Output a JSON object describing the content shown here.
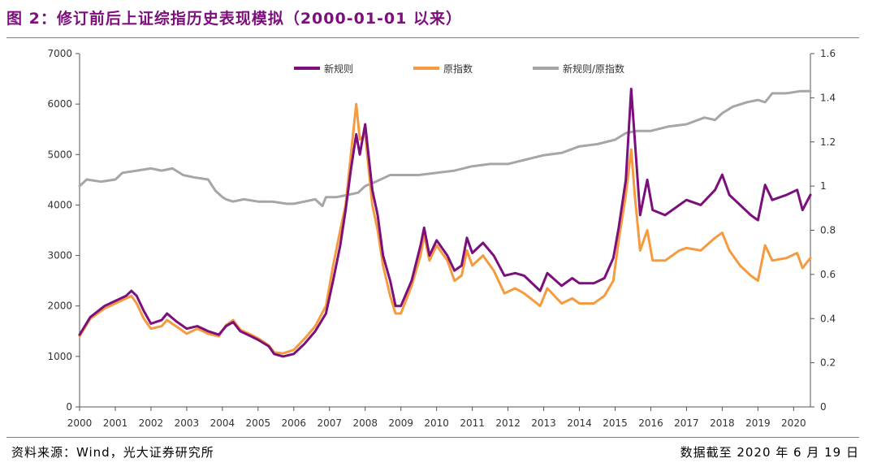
{
  "title": "图 2：修订前后上证综指历史表现模拟（2000-01-01 以来）",
  "footer": {
    "source": "资料来源：Wind，光大证券研究所",
    "date": "数据截至 2020 年 6 月 19 日"
  },
  "colors": {
    "new_rule": "#7b0f7b",
    "original": "#f59a3f",
    "ratio": "#a6a6a6",
    "title": "#7c0f7c"
  },
  "chart_data": {
    "type": "line",
    "title": "修订前后上证综指历史表现模拟（2000-01-01 以来）",
    "xlabel": "",
    "ylabel_left": "",
    "ylabel_right": "",
    "x_range": [
      2000.0,
      2020.47
    ],
    "ylim_left": [
      0,
      7000
    ],
    "ylim_right": [
      0,
      1.6
    ],
    "x_ticks": [
      "2000",
      "2001",
      "2002",
      "2003",
      "2004",
      "2005",
      "2006",
      "2007",
      "2008",
      "2009",
      "2010",
      "2011",
      "2012",
      "2013",
      "2014",
      "2015",
      "2016",
      "2017",
      "2018",
      "2019",
      "2020"
    ],
    "y_ticks_left": [
      "0",
      "1000",
      "2000",
      "3000",
      "4000",
      "5000",
      "6000",
      "7000"
    ],
    "y_ticks_right": [
      "0",
      "0.2",
      "0.4",
      "0.6",
      "0.8",
      "1",
      "1.2",
      "1.4",
      "1.6"
    ],
    "grid": false,
    "legend_position": "top",
    "series": [
      {
        "name": "新规则",
        "axis": "left",
        "points": [
          [
            2000.0,
            1430
          ],
          [
            2000.3,
            1780
          ],
          [
            2000.7,
            2000
          ],
          [
            2001.0,
            2100
          ],
          [
            2001.3,
            2200
          ],
          [
            2001.45,
            2300
          ],
          [
            2001.6,
            2200
          ],
          [
            2001.8,
            1900
          ],
          [
            2002.0,
            1650
          ],
          [
            2002.3,
            1720
          ],
          [
            2002.45,
            1850
          ],
          [
            2002.7,
            1700
          ],
          [
            2003.0,
            1550
          ],
          [
            2003.3,
            1600
          ],
          [
            2003.6,
            1500
          ],
          [
            2003.9,
            1430
          ],
          [
            2004.1,
            1600
          ],
          [
            2004.3,
            1680
          ],
          [
            2004.5,
            1500
          ],
          [
            2004.8,
            1400
          ],
          [
            2005.0,
            1330
          ],
          [
            2005.3,
            1200
          ],
          [
            2005.45,
            1050
          ],
          [
            2005.7,
            1000
          ],
          [
            2006.0,
            1050
          ],
          [
            2006.3,
            1250
          ],
          [
            2006.6,
            1500
          ],
          [
            2006.9,
            1850
          ],
          [
            2007.1,
            2500
          ],
          [
            2007.3,
            3200
          ],
          [
            2007.45,
            3900
          ],
          [
            2007.6,
            4700
          ],
          [
            2007.75,
            5400
          ],
          [
            2007.85,
            5000
          ],
          [
            2008.0,
            5600
          ],
          [
            2008.2,
            4300
          ],
          [
            2008.35,
            3800
          ],
          [
            2008.5,
            3000
          ],
          [
            2008.7,
            2500
          ],
          [
            2008.85,
            2000
          ],
          [
            2009.0,
            2000
          ],
          [
            2009.3,
            2500
          ],
          [
            2009.55,
            3200
          ],
          [
            2009.65,
            3550
          ],
          [
            2009.8,
            3000
          ],
          [
            2010.0,
            3300
          ],
          [
            2010.3,
            3000
          ],
          [
            2010.5,
            2700
          ],
          [
            2010.7,
            2800
          ],
          [
            2010.85,
            3350
          ],
          [
            2011.0,
            3050
          ],
          [
            2011.3,
            3250
          ],
          [
            2011.6,
            3000
          ],
          [
            2011.9,
            2600
          ],
          [
            2012.2,
            2650
          ],
          [
            2012.45,
            2600
          ],
          [
            2012.9,
            2300
          ],
          [
            2013.1,
            2650
          ],
          [
            2013.5,
            2400
          ],
          [
            2013.8,
            2550
          ],
          [
            2014.0,
            2450
          ],
          [
            2014.4,
            2450
          ],
          [
            2014.7,
            2550
          ],
          [
            2014.95,
            2950
          ],
          [
            2015.1,
            3550
          ],
          [
            2015.3,
            4500
          ],
          [
            2015.45,
            6300
          ],
          [
            2015.55,
            5300
          ],
          [
            2015.7,
            3800
          ],
          [
            2015.9,
            4500
          ],
          [
            2016.05,
            3900
          ],
          [
            2016.4,
            3800
          ],
          [
            2016.8,
            4000
          ],
          [
            2017.0,
            4100
          ],
          [
            2017.4,
            4000
          ],
          [
            2017.8,
            4300
          ],
          [
            2018.0,
            4600
          ],
          [
            2018.2,
            4200
          ],
          [
            2018.5,
            4000
          ],
          [
            2018.8,
            3800
          ],
          [
            2019.0,
            3700
          ],
          [
            2019.2,
            4400
          ],
          [
            2019.4,
            4100
          ],
          [
            2019.8,
            4200
          ],
          [
            2020.1,
            4300
          ],
          [
            2020.25,
            3900
          ],
          [
            2020.47,
            4200
          ]
        ]
      },
      {
        "name": "原指数",
        "axis": "left",
        "points": [
          [
            2000.0,
            1400
          ],
          [
            2000.3,
            1750
          ],
          [
            2000.7,
            1950
          ],
          [
            2001.0,
            2050
          ],
          [
            2001.3,
            2150
          ],
          [
            2001.45,
            2200
          ],
          [
            2001.6,
            2050
          ],
          [
            2001.8,
            1750
          ],
          [
            2002.0,
            1550
          ],
          [
            2002.3,
            1600
          ],
          [
            2002.45,
            1720
          ],
          [
            2002.7,
            1600
          ],
          [
            2003.0,
            1450
          ],
          [
            2003.3,
            1550
          ],
          [
            2003.6,
            1450
          ],
          [
            2003.9,
            1400
          ],
          [
            2004.1,
            1620
          ],
          [
            2004.3,
            1720
          ],
          [
            2004.5,
            1530
          ],
          [
            2004.8,
            1430
          ],
          [
            2005.0,
            1360
          ],
          [
            2005.3,
            1220
          ],
          [
            2005.45,
            1080
          ],
          [
            2005.7,
            1060
          ],
          [
            2006.0,
            1130
          ],
          [
            2006.3,
            1350
          ],
          [
            2006.6,
            1600
          ],
          [
            2006.9,
            2000
          ],
          [
            2007.1,
            2800
          ],
          [
            2007.3,
            3500
          ],
          [
            2007.45,
            4000
          ],
          [
            2007.6,
            5000
          ],
          [
            2007.75,
            6000
          ],
          [
            2007.85,
            5300
          ],
          [
            2008.0,
            5400
          ],
          [
            2008.2,
            4000
          ],
          [
            2008.35,
            3500
          ],
          [
            2008.5,
            2800
          ],
          [
            2008.7,
            2200
          ],
          [
            2008.85,
            1850
          ],
          [
            2009.0,
            1850
          ],
          [
            2009.3,
            2400
          ],
          [
            2009.55,
            3000
          ],
          [
            2009.65,
            3400
          ],
          [
            2009.8,
            2900
          ],
          [
            2010.0,
            3200
          ],
          [
            2010.3,
            2900
          ],
          [
            2010.5,
            2500
          ],
          [
            2010.7,
            2600
          ],
          [
            2010.85,
            3100
          ],
          [
            2011.0,
            2800
          ],
          [
            2011.3,
            3000
          ],
          [
            2011.6,
            2700
          ],
          [
            2011.9,
            2250
          ],
          [
            2012.2,
            2350
          ],
          [
            2012.45,
            2250
          ],
          [
            2012.9,
            2000
          ],
          [
            2013.1,
            2350
          ],
          [
            2013.5,
            2050
          ],
          [
            2013.8,
            2150
          ],
          [
            2014.0,
            2050
          ],
          [
            2014.4,
            2050
          ],
          [
            2014.7,
            2200
          ],
          [
            2014.95,
            2500
          ],
          [
            2015.1,
            3300
          ],
          [
            2015.3,
            4200
          ],
          [
            2015.45,
            5100
          ],
          [
            2015.55,
            4200
          ],
          [
            2015.7,
            3100
          ],
          [
            2015.9,
            3500
          ],
          [
            2016.05,
            2900
          ],
          [
            2016.4,
            2900
          ],
          [
            2016.8,
            3100
          ],
          [
            2017.0,
            3150
          ],
          [
            2017.4,
            3100
          ],
          [
            2017.8,
            3350
          ],
          [
            2018.0,
            3450
          ],
          [
            2018.2,
            3100
          ],
          [
            2018.5,
            2800
          ],
          [
            2018.8,
            2600
          ],
          [
            2019.0,
            2500
          ],
          [
            2019.2,
            3200
          ],
          [
            2019.4,
            2900
          ],
          [
            2019.8,
            2950
          ],
          [
            2020.1,
            3050
          ],
          [
            2020.25,
            2750
          ],
          [
            2020.47,
            2950
          ]
        ]
      },
      {
        "name": "新规则/原指数",
        "axis": "right",
        "points": [
          [
            2000.0,
            1.0
          ],
          [
            2000.2,
            1.03
          ],
          [
            2000.6,
            1.02
          ],
          [
            2001.0,
            1.03
          ],
          [
            2001.2,
            1.06
          ],
          [
            2001.6,
            1.07
          ],
          [
            2002.0,
            1.08
          ],
          [
            2002.3,
            1.07
          ],
          [
            2002.6,
            1.08
          ],
          [
            2002.9,
            1.05
          ],
          [
            2003.2,
            1.04
          ],
          [
            2003.6,
            1.03
          ],
          [
            2003.8,
            0.98
          ],
          [
            2004.0,
            0.95
          ],
          [
            2004.1,
            0.94
          ],
          [
            2004.3,
            0.93
          ],
          [
            2004.6,
            0.94
          ],
          [
            2005.0,
            0.93
          ],
          [
            2005.4,
            0.93
          ],
          [
            2005.8,
            0.92
          ],
          [
            2006.0,
            0.92
          ],
          [
            2006.3,
            0.93
          ],
          [
            2006.6,
            0.94
          ],
          [
            2006.8,
            0.91
          ],
          [
            2006.9,
            0.95
          ],
          [
            2007.2,
            0.95
          ],
          [
            2007.5,
            0.96
          ],
          [
            2007.8,
            0.97
          ],
          [
            2008.0,
            1.0
          ],
          [
            2008.3,
            1.02
          ],
          [
            2008.7,
            1.05
          ],
          [
            2009.0,
            1.05
          ],
          [
            2009.5,
            1.05
          ],
          [
            2010.0,
            1.06
          ],
          [
            2010.5,
            1.07
          ],
          [
            2011.0,
            1.09
          ],
          [
            2011.5,
            1.1
          ],
          [
            2012.0,
            1.1
          ],
          [
            2012.5,
            1.12
          ],
          [
            2013.0,
            1.14
          ],
          [
            2013.5,
            1.15
          ],
          [
            2014.0,
            1.18
          ],
          [
            2014.5,
            1.19
          ],
          [
            2015.0,
            1.21
          ],
          [
            2015.3,
            1.24
          ],
          [
            2015.6,
            1.25
          ],
          [
            2016.0,
            1.25
          ],
          [
            2016.5,
            1.27
          ],
          [
            2017.0,
            1.28
          ],
          [
            2017.5,
            1.31
          ],
          [
            2017.8,
            1.3
          ],
          [
            2018.0,
            1.33
          ],
          [
            2018.3,
            1.36
          ],
          [
            2018.7,
            1.38
          ],
          [
            2019.0,
            1.39
          ],
          [
            2019.2,
            1.38
          ],
          [
            2019.4,
            1.42
          ],
          [
            2019.8,
            1.42
          ],
          [
            2020.2,
            1.43
          ],
          [
            2020.47,
            1.43
          ]
        ]
      }
    ]
  }
}
